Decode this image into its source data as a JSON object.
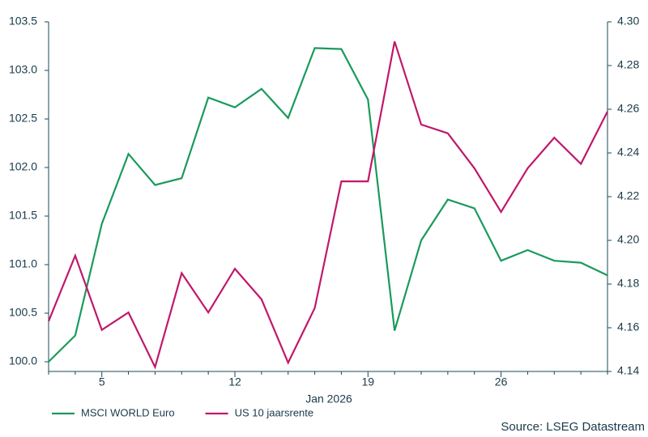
{
  "chart_data": {
    "type": "line",
    "categories": [
      null,
      null,
      "5",
      null,
      null,
      null,
      null,
      "12",
      null,
      null,
      null,
      null,
      "19",
      null,
      null,
      null,
      null,
      "26",
      null,
      null,
      null,
      null
    ],
    "x_label": "Jan 2026",
    "series": [
      {
        "name": "MSCI WORLD Euro",
        "color": "#1a9a5c",
        "axis": "y",
        "values": [
          100.0,
          100.27,
          101.42,
          102.14,
          101.82,
          101.89,
          102.72,
          102.62,
          102.81,
          102.51,
          103.23,
          103.22,
          102.7,
          100.32,
          101.25,
          101.67,
          101.58,
          101.04,
          101.15,
          101.04,
          101.02,
          100.89
        ]
      },
      {
        "name": "US 10 jaarsrente",
        "color": "#c0186a",
        "axis": "y2",
        "values": [
          4.163,
          4.193,
          4.159,
          4.167,
          4.142,
          4.185,
          4.167,
          4.187,
          4.173,
          4.144,
          4.169,
          4.227,
          4.227,
          4.291,
          4.253,
          4.249,
          4.233,
          4.213,
          4.233,
          4.247,
          4.235,
          4.259
        ]
      }
    ],
    "ylim": [
      99.9,
      103.5
    ],
    "yticks": [
      {
        "value": 100,
        "label": "100.0"
      },
      100.5,
      {
        "value": 101,
        "label": "101.0"
      },
      101.5,
      {
        "value": 102,
        "label": "102.0"
      },
      102.5,
      {
        "value": 103,
        "label": "103.0"
      },
      103.5
    ],
    "y2lim": [
      4.14,
      4.3
    ],
    "y2ticks": [
      {
        "value": 4.14,
        "label": "4.14"
      },
      {
        "value": 4.16,
        "label": "4.16"
      },
      {
        "value": 4.18,
        "label": "4.18"
      },
      {
        "value": 4.2,
        "label": "4.20"
      },
      {
        "value": 4.22,
        "label": "4.22"
      },
      {
        "value": 4.24,
        "label": "4.24"
      },
      {
        "value": 4.26,
        "label": "4.26"
      },
      {
        "value": 4.28,
        "label": "4.28"
      },
      {
        "value": 4.3,
        "label": "4.30"
      }
    ],
    "source": "Source: LSEG Datastream"
  }
}
